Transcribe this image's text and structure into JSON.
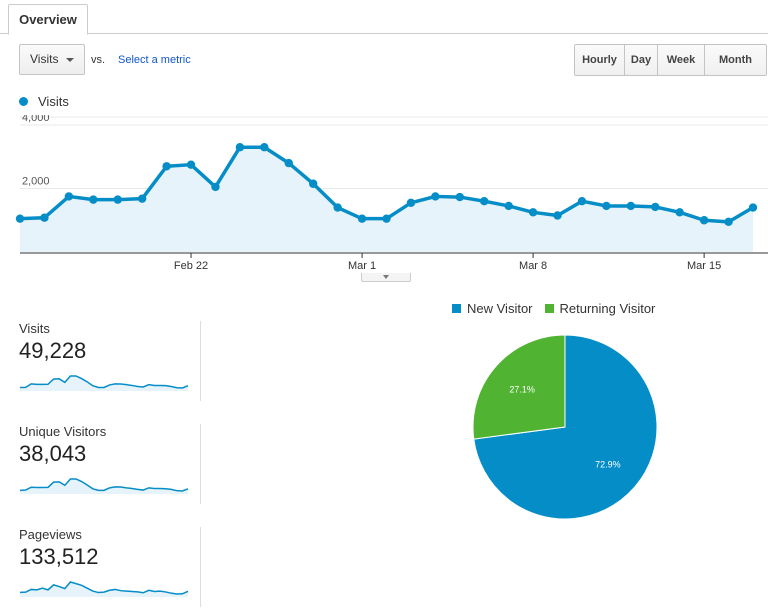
{
  "tabs": [
    {
      "label": "Overview"
    }
  ],
  "controls": {
    "metric_select": "Visits",
    "vs_label": "vs.",
    "select_metric": "Select a metric",
    "ranges": [
      {
        "label": "Hourly",
        "active": false
      },
      {
        "label": "Day",
        "active": true
      },
      {
        "label": "Week",
        "active": false
      },
      {
        "label": "Month",
        "active": false
      }
    ]
  },
  "colors": {
    "visits": "#058dc7",
    "new_visitor": "#058dc7",
    "returning_visitor": "#50b432",
    "area_fill": "#e6f3fa"
  },
  "chart_data": [
    {
      "type": "area",
      "series": [
        {
          "name": "Visits",
          "values": [
            1050,
            1080,
            1750,
            1650,
            1650,
            1680,
            2700,
            2750,
            2050,
            3300,
            3300,
            2800,
            2150,
            1400,
            1050,
            1050,
            1550,
            1750,
            1730,
            1600,
            1450,
            1250,
            1150,
            1600,
            1450,
            1450,
            1420,
            1250,
            1000,
            950,
            1400
          ]
        }
      ],
      "x_ticks": [
        {
          "index": 7,
          "label": "Feb 22"
        },
        {
          "index": 14,
          "label": "Mar 1"
        },
        {
          "index": 21,
          "label": "Mar 8"
        },
        {
          "index": 28,
          "label": "Mar 15"
        }
      ],
      "y_ticks": [
        {
          "value": 2000,
          "label": "2,000"
        },
        {
          "value": 4000,
          "label": "4,000"
        }
      ],
      "ylim": [
        0,
        4000
      ],
      "grid": true
    },
    {
      "type": "pie",
      "legend": "top",
      "slices": [
        {
          "name": "New Visitor",
          "value": 72.9,
          "label": "72.9%"
        },
        {
          "name": "Returning Visitor",
          "value": 27.1,
          "label": "27.1%"
        }
      ]
    }
  ],
  "metrics": [
    {
      "label": "Visits",
      "value": "49,228",
      "spark": [
        1050,
        1080,
        1750,
        1650,
        1650,
        1680,
        2700,
        2750,
        2050,
        3300,
        3300,
        2800,
        2150,
        1400,
        1050,
        1050,
        1550,
        1750,
        1730,
        1600,
        1450,
        1250,
        1150,
        1600,
        1450,
        1450,
        1420,
        1250,
        1000,
        950,
        1400
      ]
    },
    {
      "label": "Unique Visitors",
      "value": "38,043",
      "spark": [
        900,
        950,
        1400,
        1350,
        1350,
        1380,
        2200,
        2250,
        1700,
        2700,
        2700,
        2300,
        1750,
        1150,
        900,
        900,
        1300,
        1450,
        1430,
        1300,
        1200,
        1050,
        950,
        1300,
        1200,
        1200,
        1150,
        1050,
        850,
        800,
        1150
      ]
    },
    {
      "label": "Pageviews",
      "value": "133,512",
      "spark": [
        2800,
        2900,
        4200,
        4000,
        4800,
        4000,
        6400,
        5600,
        4600,
        7800,
        7000,
        6200,
        4800,
        3400,
        2700,
        2900,
        3800,
        4200,
        3600,
        3400,
        3200,
        3000,
        2600,
        3800,
        3200,
        3400,
        3000,
        2400,
        2000,
        2100,
        3300
      ]
    }
  ]
}
